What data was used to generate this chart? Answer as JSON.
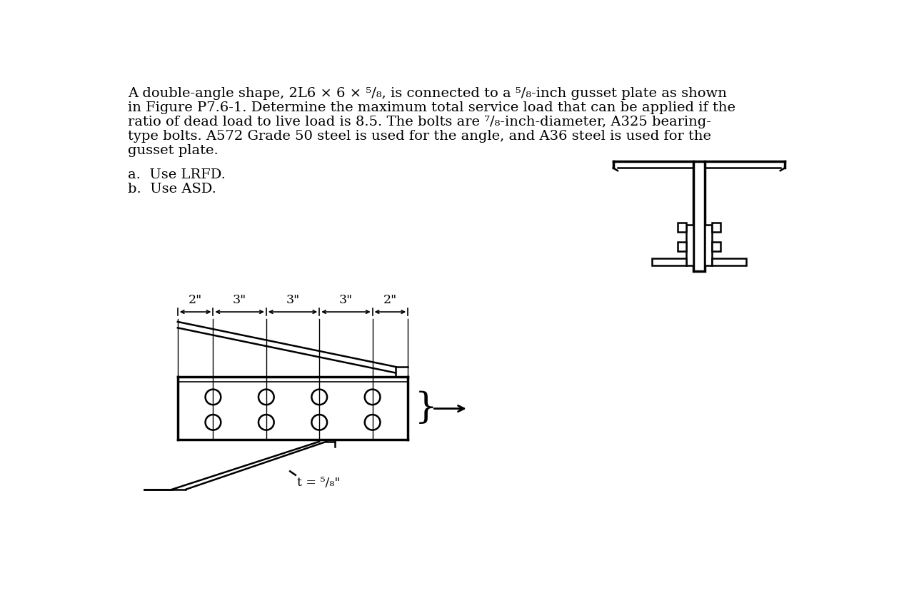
{
  "bg_color": "#ffffff",
  "text_color": "#000000",
  "line_color": "#000000",
  "para_line1": "A double-angle shape, 2L6 × 6 × ⁵/₈, is connected to a ⁵/₈-inch gusset plate as shown",
  "para_line2": "in Figure P7.6-1. Determine the maximum total service load that can be applied if the",
  "para_line3": "ratio of dead load to live load is 8.5. The bolts are ⁷/₈-inch-diameter, A325 bearing-",
  "para_line4": "type bolts. A572 Grade 50 steel is used for the angle, and A36 steel is used for the",
  "para_line5": "gusset plate.",
  "part_a": "a.  Use LRFD.",
  "part_b": "b.  Use ASD.",
  "dim_labels": [
    "2\"",
    "3\"",
    "3\"",
    "3\"",
    "2\""
  ],
  "thickness_label": "t = ⁵/₈\""
}
